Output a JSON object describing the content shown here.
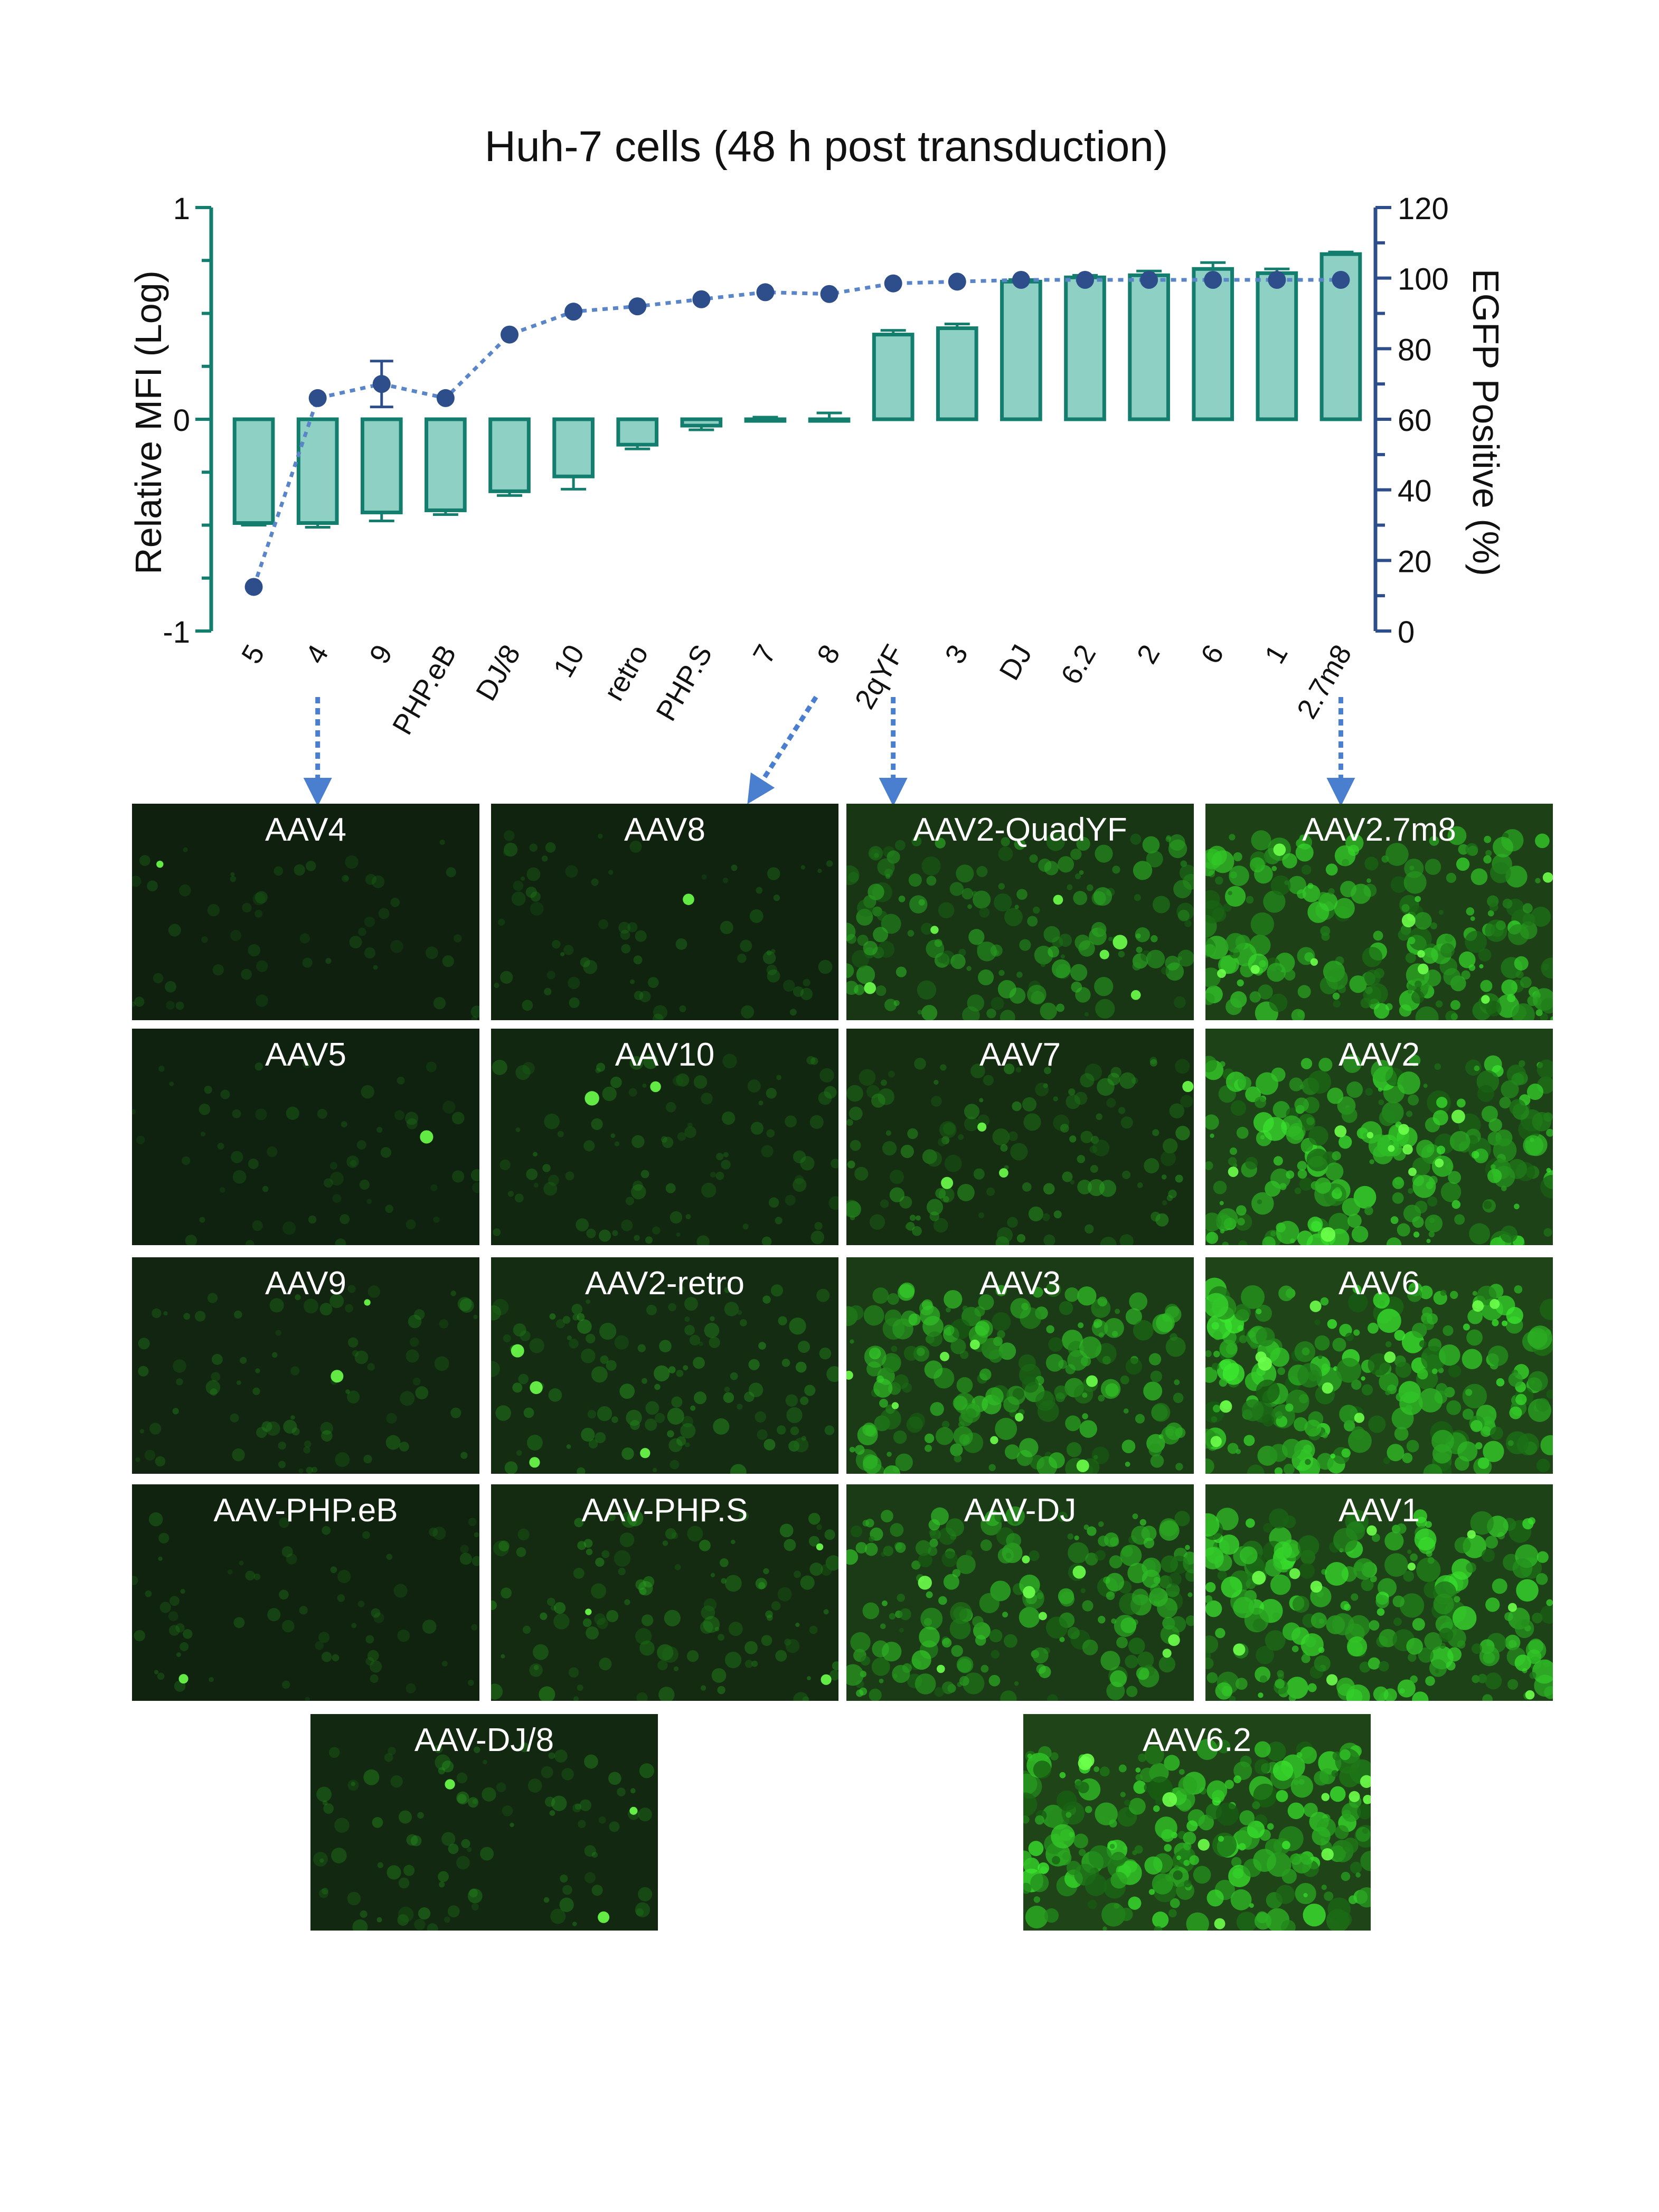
{
  "chart_data": {
    "type": "bar+line",
    "title": "Huh-7 cells (48 h post transduction)",
    "ylabel_left": "Relative MFI  (Log)",
    "ylabel_right": "EGFP Positive (%)",
    "ylim_left": [
      -1,
      1
    ],
    "yticks_left": [
      "-1",
      "0",
      "1"
    ],
    "ylim_right": [
      0,
      120
    ],
    "yticks_right": [
      "0",
      "20",
      "40",
      "60",
      "80",
      "100",
      "120"
    ],
    "categories": [
      "5",
      "4",
      "9",
      "PHP.eB",
      "DJ/8",
      "10",
      "retro",
      "PHP.S",
      "7",
      "8",
      "2qYF",
      "3",
      "DJ",
      "6.2",
      "2",
      "6",
      "1",
      "2.7m8"
    ],
    "series": [
      {
        "axis": "left",
        "kind": "bar",
        "values": [
          -0.49,
          -0.49,
          -0.44,
          -0.43,
          -0.34,
          -0.27,
          -0.12,
          -0.03,
          0.0,
          0.0,
          0.4,
          0.43,
          0.65,
          0.67,
          0.68,
          0.71,
          0.69,
          0.78
        ],
        "errors": [
          0.01,
          0.02,
          0.04,
          0.02,
          0.02,
          0.06,
          0.02,
          0.02,
          0.01,
          0.03,
          0.02,
          0.02,
          0.01,
          0.01,
          0.02,
          0.03,
          0.02,
          0.01
        ],
        "color": "#8fd0c4",
        "edge_color": "#137d6e"
      },
      {
        "axis": "right",
        "kind": "line",
        "values": [
          12.5,
          66,
          70,
          66,
          84,
          90.5,
          92,
          94,
          96,
          95.5,
          98.5,
          99,
          99.5,
          99.5,
          99.5,
          99.5,
          99.5,
          99.5
        ],
        "errors": [
          0,
          0,
          6.5,
          0,
          0,
          0,
          0,
          0,
          0,
          0,
          0,
          0,
          0,
          0,
          0,
          0,
          0,
          0
        ],
        "color": "#2d4e8a",
        "line_color": "#5b85c9"
      }
    ],
    "arrows": [
      {
        "from_category": "4",
        "to_panel": "AAV4"
      },
      {
        "from_category": "8",
        "to_panel": "AAV8"
      },
      {
        "from_category": "2qYF",
        "to_panel": "AAV2-QuadYF"
      },
      {
        "from_category": "2.7m8",
        "to_panel": "AAV2.7m8"
      }
    ]
  },
  "panels": [
    {
      "label": "AAV4",
      "brightness": 0.05
    },
    {
      "label": "AAV8",
      "brightness": 0.12
    },
    {
      "label": "AAV2-QuadYF",
      "brightness": 0.5
    },
    {
      "label": "AAV2.7m8",
      "brightness": 0.75
    },
    {
      "label": "AAV5",
      "brightness": 0.07
    },
    {
      "label": "AAV10",
      "brightness": 0.2
    },
    {
      "label": "AAV7",
      "brightness": 0.35
    },
    {
      "label": "AAV2",
      "brightness": 0.8
    },
    {
      "label": "AAV9",
      "brightness": 0.15
    },
    {
      "label": "AAV2-retro",
      "brightness": 0.3
    },
    {
      "label": "AAV3",
      "brightness": 0.65
    },
    {
      "label": "AAV6",
      "brightness": 0.85
    },
    {
      "label": "AAV-PHP.eB",
      "brightness": 0.1
    },
    {
      "label": "AAV-PHP.S",
      "brightness": 0.28
    },
    {
      "label": "AAV-DJ",
      "brightness": 0.65
    },
    {
      "label": "AAV1",
      "brightness": 0.8
    },
    {
      "label": "AAV-DJ/8",
      "brightness": 0.22
    },
    {
      "label": "AAV6.2",
      "brightness": 0.85
    }
  ]
}
